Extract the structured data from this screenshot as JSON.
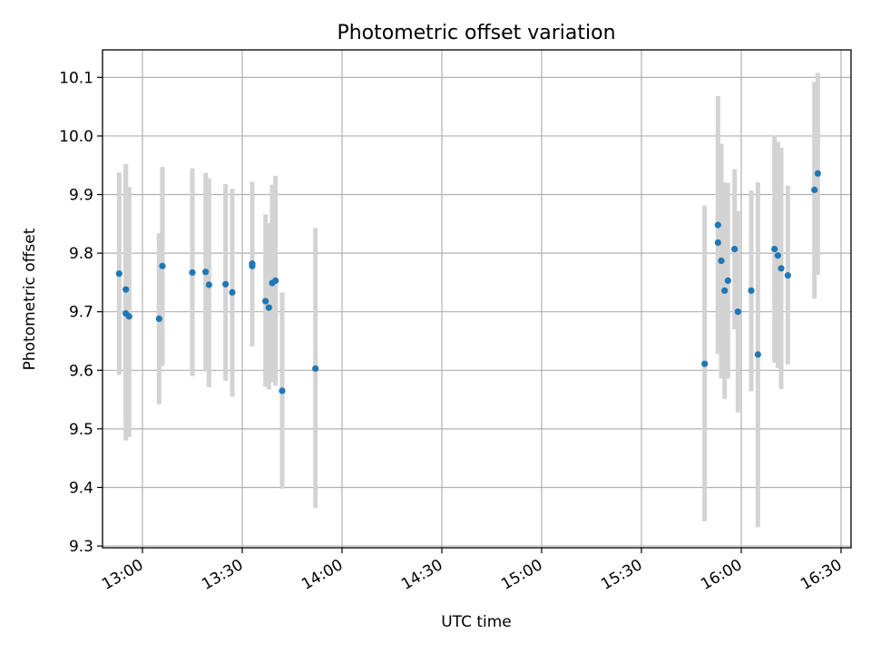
{
  "chart_data": {
    "type": "scatter",
    "title": "Photometric offset variation",
    "xlabel": "UTC time",
    "ylabel": "Photometric offset",
    "xlim": [
      "12:48",
      "16:33"
    ],
    "ylim": [
      9.297,
      10.147
    ],
    "xticks": [
      "13:00",
      "13:30",
      "14:00",
      "14:30",
      "15:00",
      "15:30",
      "16:00",
      "16:30"
    ],
    "yticks": [
      9.3,
      9.4,
      9.5,
      9.6,
      9.7,
      9.8,
      9.9,
      10.0,
      10.1
    ],
    "grid": true,
    "legend": "none",
    "colors": {
      "points": "#1f77b4",
      "errorbars": "#d3d3d3",
      "grid": "#b0b0b0"
    },
    "series": [
      {
        "points": [
          {
            "t": "12:53",
            "y": 9.765,
            "lo": 9.592,
            "hi": 9.938
          },
          {
            "t": "12:55",
            "y": 9.738,
            "lo": 9.525,
            "hi": 9.95
          },
          {
            "t": "12:55",
            "y": 9.697,
            "lo": 9.48,
            "hi": 9.952
          },
          {
            "t": "12:56",
            "y": 9.692,
            "lo": 9.486,
            "hi": 9.913
          },
          {
            "t": "13:05",
            "y": 9.688,
            "lo": 9.542,
            "hi": 9.834
          },
          {
            "t": "13:06",
            "y": 9.778,
            "lo": 9.607,
            "hi": 9.947
          },
          {
            "t": "13:15",
            "y": 9.767,
            "lo": 9.59,
            "hi": 9.945
          },
          {
            "t": "13:19",
            "y": 9.768,
            "lo": 9.598,
            "hi": 9.937
          },
          {
            "t": "13:20",
            "y": 9.746,
            "lo": 9.571,
            "hi": 9.928
          },
          {
            "t": "13:25",
            "y": 9.747,
            "lo": 9.582,
            "hi": 9.918
          },
          {
            "t": "13:27",
            "y": 9.733,
            "lo": 9.555,
            "hi": 9.91
          },
          {
            "t": "13:33",
            "y": 9.782,
            "lo": 9.641,
            "hi": 9.922
          },
          {
            "t": "13:33",
            "y": 9.778,
            "lo": 9.641,
            "hi": 9.915
          },
          {
            "t": "13:37",
            "y": 9.718,
            "lo": 9.572,
            "hi": 9.866
          },
          {
            "t": "13:38",
            "y": 9.707,
            "lo": 9.567,
            "hi": 9.851
          },
          {
            "t": "13:39",
            "y": 9.749,
            "lo": 9.58,
            "hi": 9.917
          },
          {
            "t": "13:40",
            "y": 9.753,
            "lo": 9.574,
            "hi": 9.932
          },
          {
            "t": "13:42",
            "y": 9.565,
            "lo": 9.398,
            "hi": 9.733
          },
          {
            "t": "13:52",
            "y": 9.603,
            "lo": 9.365,
            "hi": 9.843
          },
          {
            "t": "15:49",
            "y": 9.611,
            "lo": 9.342,
            "hi": 9.881
          },
          {
            "t": "15:53",
            "y": 9.848,
            "lo": 9.628,
            "hi": 10.068
          },
          {
            "t": "15:53",
            "y": 9.818,
            "lo": 9.637,
            "hi": 9.998
          },
          {
            "t": "15:54",
            "y": 9.787,
            "lo": 9.586,
            "hi": 9.987
          },
          {
            "t": "15:55",
            "y": 9.736,
            "lo": 9.551,
            "hi": 9.921
          },
          {
            "t": "15:56",
            "y": 9.753,
            "lo": 9.586,
            "hi": 9.92
          },
          {
            "t": "15:58",
            "y": 9.807,
            "lo": 9.67,
            "hi": 9.943
          },
          {
            "t": "15:59",
            "y": 9.7,
            "lo": 9.528,
            "hi": 9.872
          },
          {
            "t": "16:03",
            "y": 9.736,
            "lo": 9.564,
            "hi": 9.907
          },
          {
            "t": "16:05",
            "y": 9.627,
            "lo": 9.332,
            "hi": 9.921
          },
          {
            "t": "16:10",
            "y": 9.807,
            "lo": 9.613,
            "hi": 10.001
          },
          {
            "t": "16:11",
            "y": 9.796,
            "lo": 9.604,
            "hi": 9.99
          },
          {
            "t": "16:12",
            "y": 9.774,
            "lo": 9.568,
            "hi": 9.98
          },
          {
            "t": "16:14",
            "y": 9.762,
            "lo": 9.61,
            "hi": 9.915
          },
          {
            "t": "16:22",
            "y": 9.908,
            "lo": 9.722,
            "hi": 10.092
          },
          {
            "t": "16:23",
            "y": 9.936,
            "lo": 9.763,
            "hi": 10.108
          }
        ]
      }
    ]
  }
}
